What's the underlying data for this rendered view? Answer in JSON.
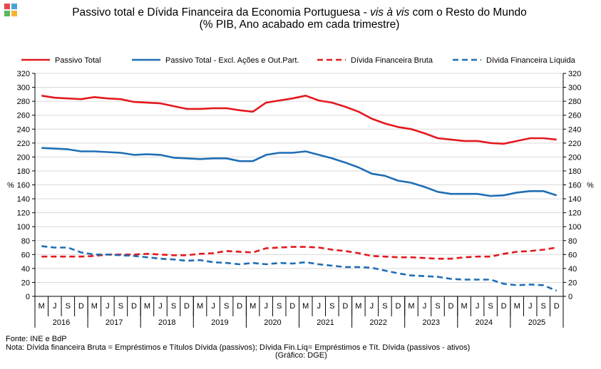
{
  "logo_colors": [
    "#e8474c",
    "#4da3d9",
    "#5cb85c",
    "#f5b335"
  ],
  "title": {
    "part1": "Passivo total e Dívida Financeira da Economia Portuguesa - ",
    "italic": "vis à vis",
    "part2": " com o Resto do Mundo",
    "line3": "(% PIB, Ano acabado em cada trimestre)"
  },
  "footer": {
    "source": "Fonte: INE e BdP",
    "note": "Nota: Dívida financeira Bruta = Empréstimos e Títulos Dívida (passivos);  Dívida Fin.Líq= Empréstimos e Tít. Dívida (passivos - ativos)",
    "credit": "(Gráfico: DGE)"
  },
  "chart_data": {
    "type": "line",
    "ylabel_left": "%",
    "ylabel_right": "%",
    "ylim": [
      0,
      320
    ],
    "yticks": [
      0,
      20,
      40,
      60,
      80,
      100,
      120,
      140,
      160,
      180,
      200,
      220,
      240,
      260,
      280,
      300,
      320
    ],
    "grid": "horizontal",
    "legend_position": "top",
    "quarters": [
      "M",
      "J",
      "S",
      "D",
      "M",
      "J",
      "S",
      "D",
      "M",
      "J",
      "S",
      "D",
      "M",
      "J",
      "S",
      "D",
      "M",
      "J",
      "S",
      "D",
      "M",
      "J",
      "S",
      "D",
      "M",
      "J",
      "S",
      "D",
      "M",
      "J",
      "S",
      "D",
      "M",
      "J",
      "S",
      "D",
      "M",
      "J",
      "S",
      "D"
    ],
    "years": [
      "2016",
      "2017",
      "2018",
      "2019",
      "2020",
      "2021",
      "2022",
      "2023",
      "2024",
      "2025"
    ],
    "series": [
      {
        "name": "Passivo Total",
        "color": "#e3191e",
        "style": "solid",
        "values": [
          288,
          285,
          284,
          283,
          286,
          284,
          283,
          279,
          278,
          277,
          273,
          269,
          269,
          270,
          270,
          267,
          265,
          278,
          281,
          284,
          288,
          281,
          278,
          272,
          265,
          255,
          248,
          243,
          240,
          234,
          227,
          225,
          223,
          223,
          220,
          219,
          223,
          227,
          227,
          225
        ]
      },
      {
        "name": "Passivo Total - Excl. Ações e Out.Part.",
        "color": "#1f6eb5",
        "style": "solid",
        "values": [
          213,
          212,
          211,
          208,
          208,
          207,
          206,
          203,
          204,
          203,
          199,
          198,
          197,
          198,
          198,
          194,
          194,
          203,
          206,
          206,
          208,
          203,
          198,
          192,
          185,
          176,
          173,
          166,
          163,
          157,
          150,
          147,
          147,
          147,
          144,
          145,
          149,
          151,
          151,
          145
        ]
      },
      {
        "name": "Dívida Financeira Bruta",
        "color": "#e3191e",
        "style": "dashed",
        "values": [
          57,
          57,
          57,
          57,
          58,
          60,
          60,
          60,
          61,
          60,
          59,
          59,
          61,
          62,
          65,
          64,
          63,
          69,
          70,
          71,
          71,
          70,
          67,
          65,
          62,
          58,
          57,
          56,
          56,
          55,
          54,
          54,
          56,
          57,
          57,
          61,
          64,
          65,
          67,
          70
        ]
      },
      {
        "name": "Dívida Financeira Líquida",
        "color": "#1f6eb5",
        "style": "dashed",
        "values": [
          72,
          70,
          70,
          63,
          60,
          60,
          59,
          58,
          56,
          54,
          53,
          51,
          52,
          49,
          48,
          46,
          48,
          46,
          48,
          47,
          49,
          46,
          44,
          42,
          42,
          41,
          37,
          33,
          30,
          29,
          28,
          25,
          24,
          24,
          24,
          18,
          16,
          17,
          16,
          8
        ]
      }
    ]
  }
}
